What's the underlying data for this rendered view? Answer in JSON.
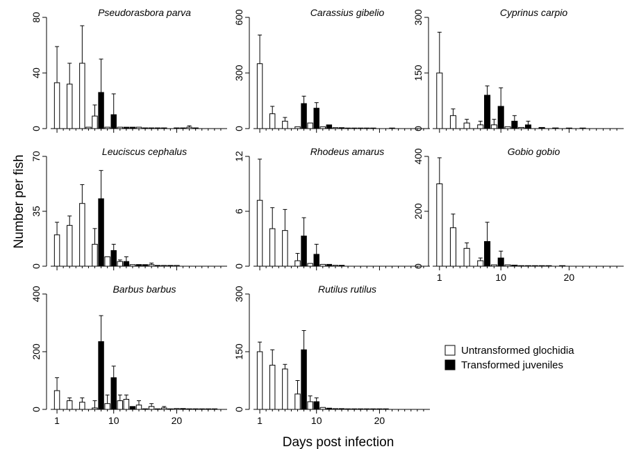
{
  "figure": {
    "ylabel": "Number per fish",
    "xlabel": "Days post infection",
    "colors": {
      "untransformed": "#ffffff",
      "transformed": "#000000",
      "stroke": "#000000"
    }
  },
  "legend": {
    "placement": "right-bottom",
    "entries": [
      {
        "label": "Untransformed glochidia",
        "series": "untransformed"
      },
      {
        "label": "Transformed juveniles",
        "series": "transformed"
      }
    ]
  },
  "chart_data": [
    {
      "type": "bar",
      "title": "Pseudorasbora parva",
      "ylim": [
        0,
        80
      ],
      "yticks": [
        "0",
        "40",
        "80"
      ],
      "xlim": [
        0,
        28
      ],
      "xticks": [
        1,
        10,
        20
      ],
      "xtick_labels_shown": false,
      "series": [
        {
          "name": "Untransformed glochidia",
          "key": "untransformed",
          "points": [
            [
              1,
              33,
              26
            ],
            [
              3,
              32,
              15
            ],
            [
              5,
              47,
              27
            ],
            [
              6,
              1,
              0
            ],
            [
              7,
              9,
              8
            ],
            [
              9,
              1,
              0
            ],
            [
              11,
              1,
              0
            ],
            [
              12,
              1,
              0
            ],
            [
              13,
              1,
              0
            ],
            [
              14,
              1,
              0
            ],
            [
              15,
              0.5,
              0
            ],
            [
              16,
              0.5,
              0
            ],
            [
              18,
              0.5,
              0
            ],
            [
              20,
              0.5,
              0
            ],
            [
              22,
              1,
              1
            ]
          ]
        },
        {
          "name": "Transformed juveniles",
          "key": "transformed",
          "points": [
            [
              8,
              26,
              24
            ],
            [
              10,
              10,
              15
            ],
            [
              12,
              1,
              0
            ],
            [
              13,
              1,
              0
            ],
            [
              15,
              0.5,
              0
            ],
            [
              17,
              0.5,
              0
            ],
            [
              18,
              0.5,
              0
            ],
            [
              21,
              0.5,
              0
            ],
            [
              23,
              0.5,
              0
            ]
          ]
        }
      ]
    },
    {
      "type": "bar",
      "title": "Carassius gibelio",
      "ylim": [
        0,
        600
      ],
      "yticks": [
        "0",
        "300",
        "600"
      ],
      "xlim": [
        0,
        28
      ],
      "xticks": [
        1,
        10,
        20
      ],
      "xtick_labels_shown": false,
      "series": [
        {
          "name": "Untransformed glochidia",
          "key": "untransformed",
          "points": [
            [
              1,
              350,
              155
            ],
            [
              3,
              80,
              40
            ],
            [
              5,
              40,
              20
            ],
            [
              7,
              10,
              0
            ],
            [
              9,
              30,
              0
            ],
            [
              11,
              10,
              0
            ],
            [
              12,
              10,
              0
            ],
            [
              13,
              5,
              0
            ],
            [
              15,
              3,
              0
            ],
            [
              17,
              2,
              0
            ],
            [
              19,
              1,
              0
            ],
            [
              22,
              1,
              0
            ]
          ]
        },
        {
          "name": "Transformed juveniles",
          "key": "transformed",
          "points": [
            [
              8,
              135,
              40
            ],
            [
              10,
              110,
              30
            ],
            [
              12,
              20,
              0
            ],
            [
              14,
              5,
              0
            ],
            [
              16,
              2,
              0
            ],
            [
              18,
              1,
              0
            ]
          ]
        }
      ]
    },
    {
      "type": "bar",
      "title": "Cyprinus carpio",
      "ylim": [
        0,
        300
      ],
      "yticks": [
        "0",
        "150",
        "300"
      ],
      "xlim": [
        0,
        28
      ],
      "xticks": [
        1,
        10,
        20
      ],
      "xtick_labels_shown": false,
      "series": [
        {
          "name": "Untransformed glochidia",
          "key": "untransformed",
          "points": [
            [
              1,
              150,
              110
            ],
            [
              3,
              35,
              18
            ],
            [
              5,
              15,
              10
            ],
            [
              7,
              10,
              10
            ],
            [
              9,
              10,
              15
            ],
            [
              11,
              5,
              0
            ],
            [
              12,
              4,
              0
            ],
            [
              13,
              3,
              0
            ],
            [
              14,
              2,
              0
            ],
            [
              16,
              1,
              0
            ],
            [
              18,
              1,
              0
            ],
            [
              20,
              1,
              0
            ],
            [
              22,
              1,
              0
            ]
          ]
        },
        {
          "name": "Transformed juveniles",
          "key": "transformed",
          "points": [
            [
              8,
              90,
              25
            ],
            [
              10,
              60,
              50
            ],
            [
              12,
              20,
              15
            ],
            [
              14,
              10,
              10
            ],
            [
              16,
              3,
              0
            ],
            [
              18,
              1,
              0
            ]
          ]
        }
      ]
    },
    {
      "type": "bar",
      "title": "Leuciscus cephalus",
      "ylim": [
        0,
        70
      ],
      "yticks": [
        "0",
        "35",
        "70"
      ],
      "xlim": [
        0,
        28
      ],
      "xticks": [
        1,
        10,
        20
      ],
      "xtick_labels_shown": false,
      "series": [
        {
          "name": "Untransformed glochidia",
          "key": "untransformed",
          "points": [
            [
              1,
              20,
              8
            ],
            [
              3,
              26,
              6
            ],
            [
              5,
              40,
              12
            ],
            [
              7,
              14,
              10
            ],
            [
              9,
              6,
              0
            ],
            [
              11,
              3,
              1
            ],
            [
              12,
              2,
              0
            ],
            [
              13,
              1,
              0
            ],
            [
              14,
              1,
              0
            ],
            [
              16,
              1,
              1
            ],
            [
              18,
              0.5,
              0
            ],
            [
              20,
              0.5,
              0
            ]
          ]
        },
        {
          "name": "Transformed juveniles",
          "key": "transformed",
          "points": [
            [
              8,
              43,
              18
            ],
            [
              10,
              10,
              4
            ],
            [
              12,
              3,
              3
            ],
            [
              14,
              1,
              0
            ],
            [
              15,
              1,
              0
            ],
            [
              17,
              0.5,
              0
            ],
            [
              19,
              0.5,
              0
            ]
          ]
        }
      ]
    },
    {
      "type": "bar",
      "title": "Rhodeus amarus",
      "ylim": [
        0,
        12
      ],
      "yticks": [
        "0",
        "6",
        "12"
      ],
      "xlim": [
        0,
        28
      ],
      "xticks": [
        1,
        10,
        20
      ],
      "xtick_labels_shown": false,
      "series": [
        {
          "name": "Untransformed glochidia",
          "key": "untransformed",
          "points": [
            [
              1,
              7.2,
              4.5
            ],
            [
              3,
              4.1,
              2.3
            ],
            [
              5,
              3.9,
              2.3
            ],
            [
              7,
              0.6,
              0.8
            ],
            [
              9,
              0.3,
              0
            ],
            [
              11,
              0.2,
              0
            ],
            [
              12,
              0.1,
              0
            ],
            [
              13,
              0.1,
              0
            ]
          ]
        },
        {
          "name": "Transformed juveniles",
          "key": "transformed",
          "points": [
            [
              8,
              3.3,
              2
            ],
            [
              10,
              1.3,
              1.1
            ],
            [
              12,
              0.2,
              0
            ],
            [
              14,
              0.1,
              0
            ]
          ]
        }
      ]
    },
    {
      "type": "bar",
      "title": "Gobio gobio",
      "ylim": [
        0,
        400
      ],
      "yticks": [
        "0",
        "200",
        "400"
      ],
      "xlim": [
        0,
        28
      ],
      "xticks": [
        1,
        10,
        20
      ],
      "xtick_labels_shown": true,
      "series": [
        {
          "name": "Untransformed glochidia",
          "key": "untransformed",
          "points": [
            [
              1,
              300,
              95
            ],
            [
              3,
              140,
              50
            ],
            [
              5,
              65,
              20
            ],
            [
              7,
              20,
              10
            ],
            [
              9,
              5,
              0
            ],
            [
              11,
              5,
              0
            ],
            [
              12,
              3,
              0
            ],
            [
              13,
              2,
              0
            ],
            [
              15,
              1,
              0
            ],
            [
              17,
              1,
              0
            ],
            [
              19,
              1,
              0
            ]
          ]
        },
        {
          "name": "Transformed juveniles",
          "key": "transformed",
          "points": [
            [
              8,
              90,
              70
            ],
            [
              10,
              30,
              25
            ],
            [
              12,
              4,
              0
            ],
            [
              14,
              2,
              0
            ],
            [
              16,
              1,
              0
            ]
          ]
        }
      ]
    },
    {
      "type": "bar",
      "title": "Barbus barbus",
      "ylim": [
        0,
        400
      ],
      "yticks": [
        "0",
        "200",
        "400"
      ],
      "xlim": [
        0,
        28
      ],
      "xticks": [
        1,
        10,
        20
      ],
      "xtick_labels_shown": true,
      "series": [
        {
          "name": "Untransformed glochidia",
          "key": "untransformed",
          "points": [
            [
              1,
              65,
              45
            ],
            [
              3,
              30,
              10
            ],
            [
              5,
              25,
              15
            ],
            [
              7,
              5,
              25
            ],
            [
              9,
              20,
              30
            ],
            [
              11,
              30,
              20
            ],
            [
              12,
              35,
              15
            ],
            [
              14,
              15,
              15
            ],
            [
              16,
              10,
              10
            ],
            [
              18,
              5,
              5
            ],
            [
              20,
              3,
              0
            ],
            [
              22,
              2,
              0
            ],
            [
              24,
              1,
              0
            ],
            [
              26,
              1,
              0
            ]
          ]
        },
        {
          "name": "Transformed juveniles",
          "key": "transformed",
          "points": [
            [
              8,
              235,
              90
            ],
            [
              10,
              110,
              40
            ],
            [
              13,
              10,
              0
            ],
            [
              15,
              2,
              0
            ],
            [
              17,
              1,
              0
            ],
            [
              19,
              1,
              0
            ],
            [
              21,
              3,
              0
            ],
            [
              23,
              2,
              0
            ],
            [
              25,
              1,
              0
            ]
          ]
        }
      ]
    },
    {
      "type": "bar",
      "title": "Rutilus rutilus",
      "ylim": [
        0,
        300
      ],
      "yticks": [
        "0",
        "150",
        "300"
      ],
      "xlim": [
        0,
        28
      ],
      "xticks": [
        1,
        10,
        20
      ],
      "xtick_labels_shown": true,
      "series": [
        {
          "name": "Untransformed glochidia",
          "key": "untransformed",
          "points": [
            [
              1,
              150,
              25
            ],
            [
              3,
              115,
              40
            ],
            [
              5,
              105,
              12
            ],
            [
              7,
              40,
              35
            ],
            [
              9,
              20,
              15
            ],
            [
              11,
              5,
              0
            ],
            [
              12,
              3,
              0
            ],
            [
              13,
              2,
              0
            ],
            [
              15,
              1,
              0
            ],
            [
              17,
              1,
              0
            ],
            [
              19,
              1,
              0
            ],
            [
              21,
              1,
              0
            ]
          ]
        },
        {
          "name": "Transformed juveniles",
          "key": "transformed",
          "points": [
            [
              8,
              155,
              50
            ],
            [
              10,
              20,
              10
            ],
            [
              12,
              3,
              0
            ],
            [
              14,
              2,
              0
            ],
            [
              16,
              1,
              0
            ],
            [
              18,
              1,
              0
            ],
            [
              20,
              1,
              0
            ]
          ]
        }
      ]
    }
  ]
}
